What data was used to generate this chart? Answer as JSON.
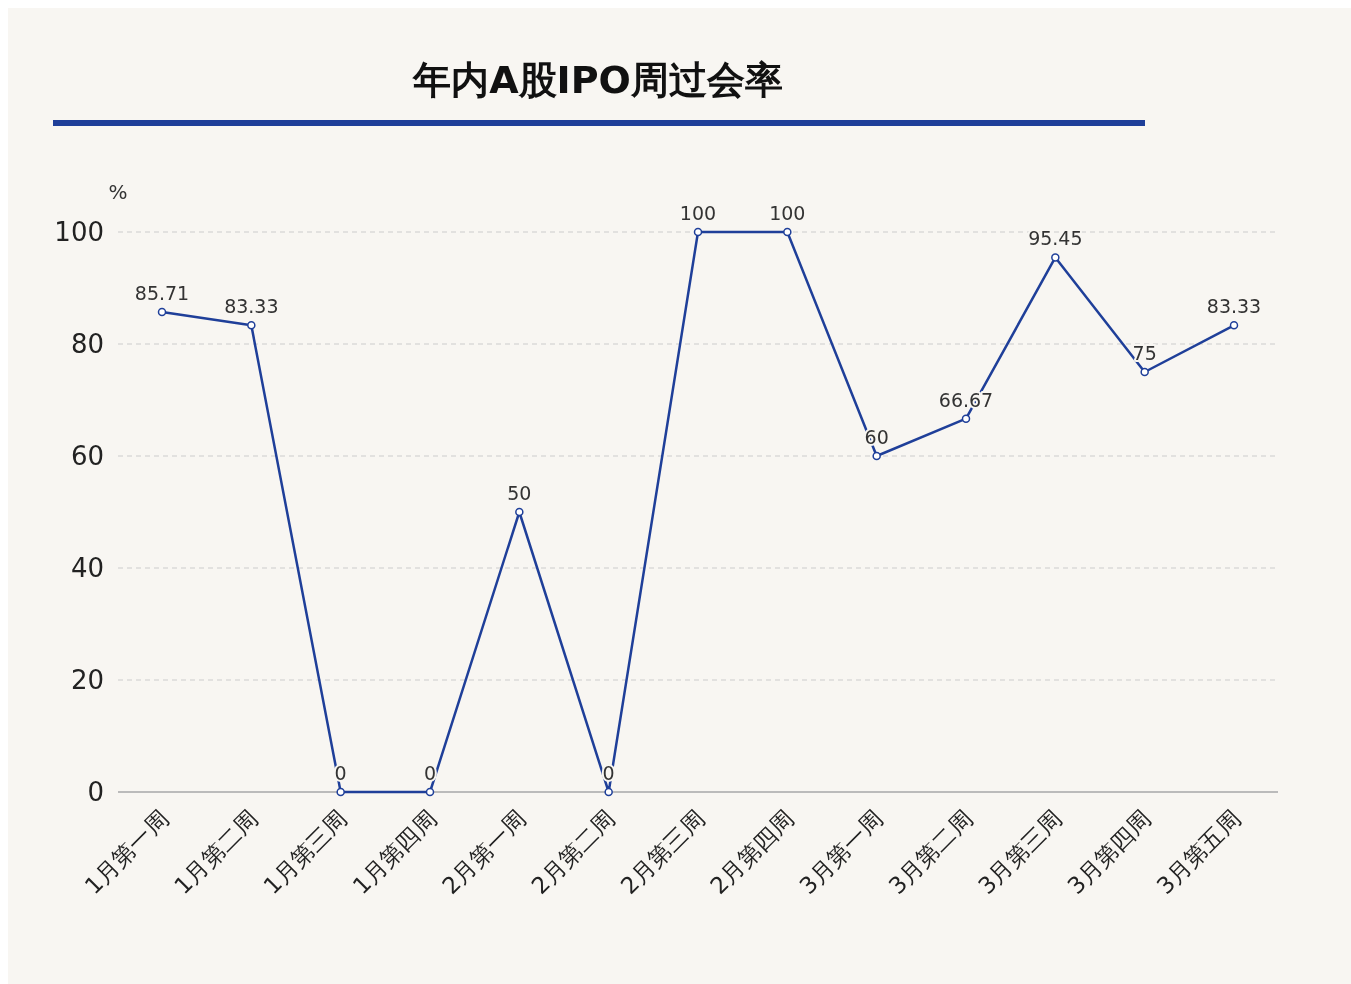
{
  "chart_data": {
    "type": "line",
    "title": "年内A股IPO周过会率",
    "ylabel": "%",
    "categories": [
      "1月第一周",
      "1月第二周",
      "1月第三周",
      "1月第四周",
      "2月第一周",
      "2月第二周",
      "2月第三周",
      "2月第四周",
      "3月第一周",
      "3月第二周",
      "3月第三周",
      "3月第四周",
      "3月第五周"
    ],
    "series": [
      {
        "color": "#1f3f99",
        "values": [
          85.71,
          83.33,
          0,
          0,
          50,
          0,
          100,
          100,
          60,
          66.67,
          95.45,
          75,
          83.33
        ]
      }
    ],
    "ylim": [
      0,
      100
    ],
    "yticks": [
      0,
      20,
      40,
      60,
      80,
      100
    ],
    "grid": "y",
    "marker": "circle",
    "line_style": "solid",
    "data_labels": true
  }
}
